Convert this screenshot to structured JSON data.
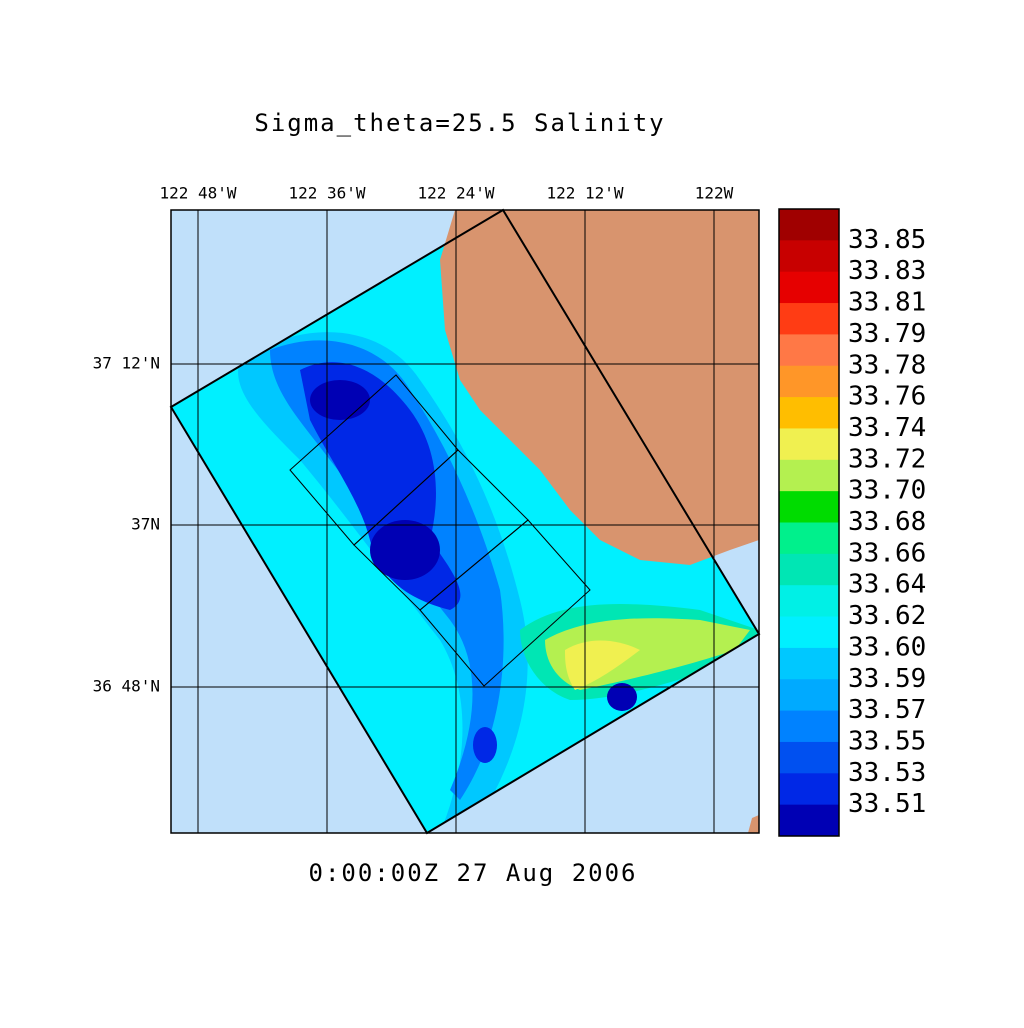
{
  "title": "Sigma_theta=25.5 Salinity",
  "longitude_ticks": [
    "122 48'W",
    "122 36'W",
    "122 24'W",
    "122 12'W",
    "122W"
  ],
  "latitude_ticks": [
    "37 12'N",
    "37N",
    "36 48'N"
  ],
  "colorbar": {
    "labels": [
      "33.85",
      "33.83",
      "33.81",
      "33.79",
      "33.78",
      "33.76",
      "33.74",
      "33.72",
      "33.70",
      "33.68",
      "33.66",
      "33.64",
      "33.62",
      "33.60",
      "33.59",
      "33.57",
      "33.55",
      "33.53",
      "33.51"
    ],
    "colors": [
      "#a00000",
      "#c80000",
      "#e60000",
      "#ff3c14",
      "#ff7846",
      "#ff9628",
      "#ffbe00",
      "#f0f050",
      "#b4f050",
      "#00dc00",
      "#00f08c",
      "#00e6b4",
      "#00f0e6",
      "#00f0ff",
      "#00c8ff",
      "#00aaff",
      "#0082ff",
      "#0050f0",
      "#0028e6",
      "#0000b4"
    ]
  },
  "timestamp": "0:00:00Z  27 Aug 2006"
}
